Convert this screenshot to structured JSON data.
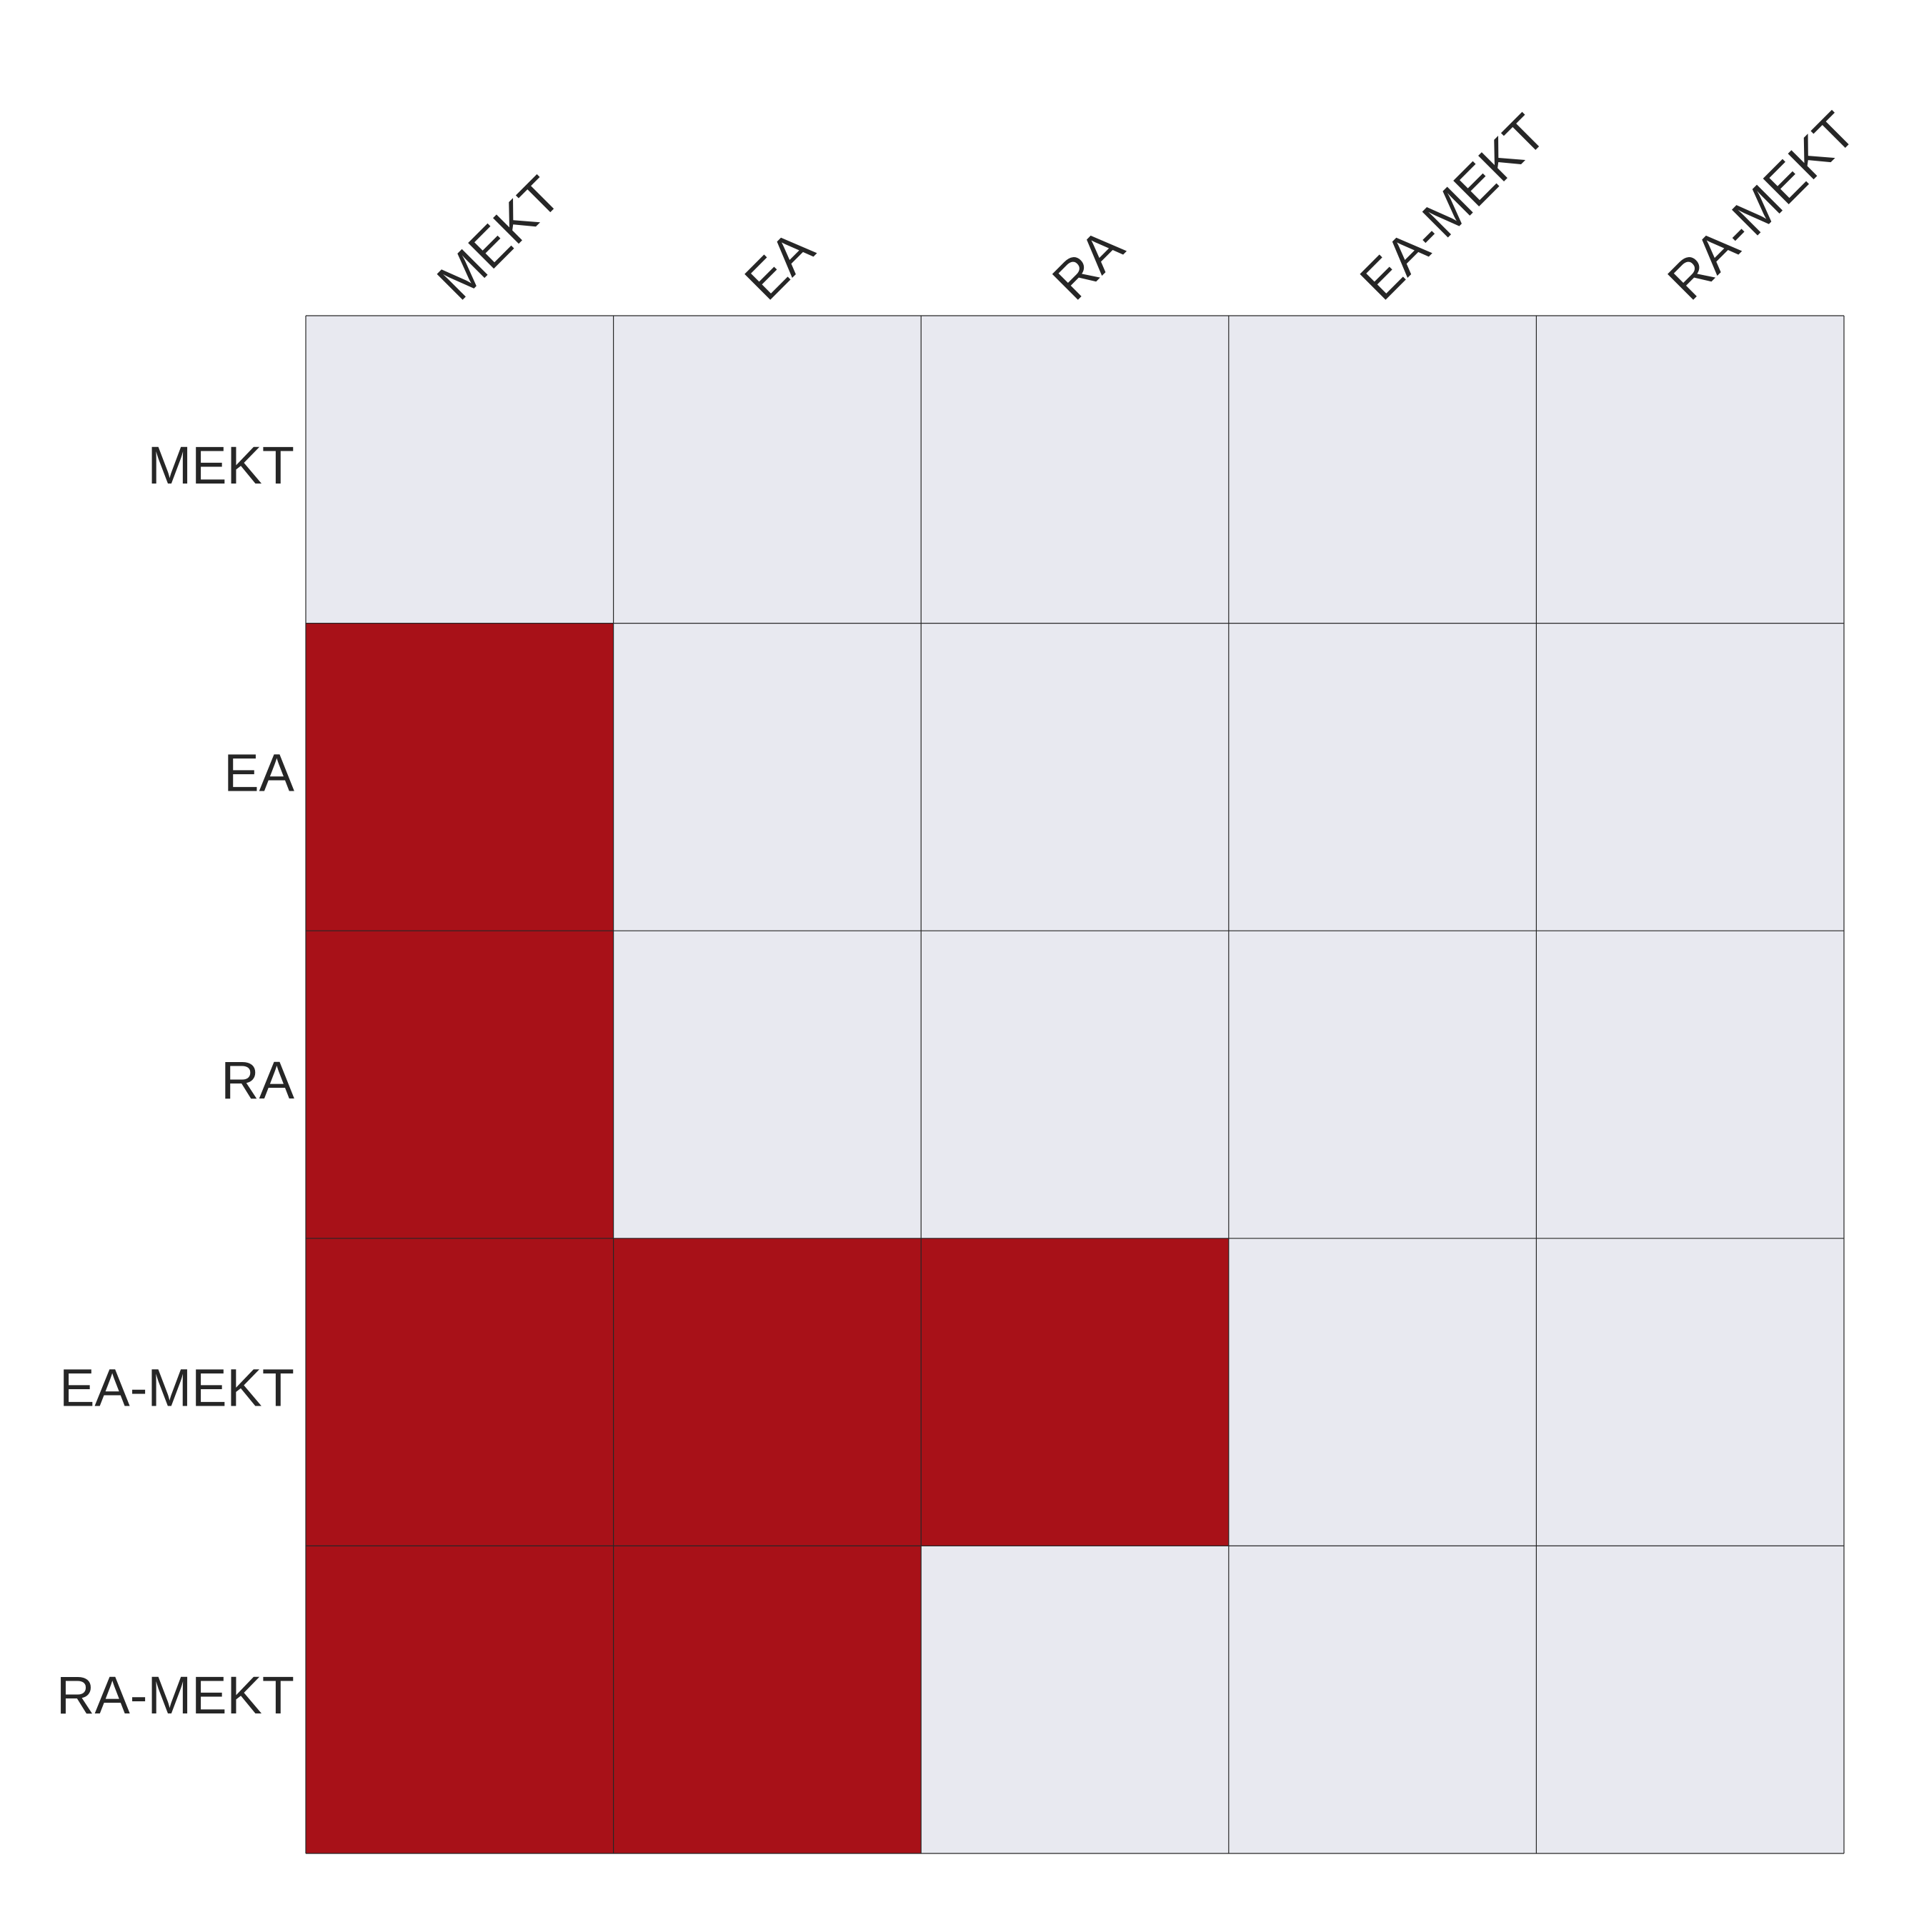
{
  "chart_data": {
    "type": "heatmap",
    "rows": [
      "MEKT",
      "EA",
      "RA",
      "EA-MEKT",
      "RA-MEKT"
    ],
    "columns": [
      "MEKT",
      "EA",
      "RA",
      "EA-MEKT",
      "RA-MEKT"
    ],
    "values": [
      [
        0,
        0,
        0,
        0,
        0
      ],
      [
        1,
        0,
        0,
        0,
        0
      ],
      [
        1,
        0,
        0,
        0,
        0
      ],
      [
        1,
        1,
        1,
        0,
        0
      ],
      [
        1,
        1,
        0,
        0,
        0
      ]
    ],
    "colors": {
      "active": "#a81118",
      "inactive": "#e8e9f0",
      "grid": "#262626",
      "text": "#262626"
    },
    "legend": "none",
    "column_label_position": "top"
  }
}
